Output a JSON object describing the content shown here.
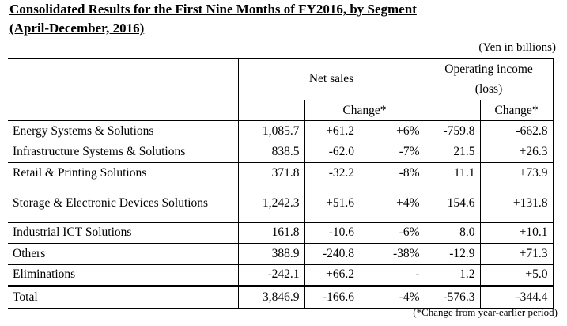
{
  "title_line1": "Consolidated Results for the First Nine Months of FY2016, by Segment",
  "title_line2": "(April-December, 2016)",
  "unit_note": "(Yen in billions)",
  "headers": {
    "net_sales": "Net sales",
    "operating_income": "Operating income (loss)",
    "change": "Change*",
    "change_oi": "Change*"
  },
  "rows": [
    {
      "segment": "Energy Systems & Solutions",
      "net_sales": "1,085.7",
      "change": "+61.2",
      "change_pct": "+6%",
      "op_income": "-759.8",
      "op_change": "-662.8"
    },
    {
      "segment": "Infrastructure Systems & Solutions",
      "net_sales": "838.5",
      "change": "-62.0",
      "change_pct": "-7%",
      "op_income": "21.5",
      "op_change": "+26.3"
    },
    {
      "segment": "Retail & Printing Solutions",
      "net_sales": "371.8",
      "change": "-32.2",
      "change_pct": "-8%",
      "op_income": "11.1",
      "op_change": "+73.9"
    },
    {
      "segment": "Storage & Electronic Devices Solutions",
      "net_sales": "1,242.3",
      "change": "+51.6",
      "change_pct": "+4%",
      "op_income": "154.6",
      "op_change": "+131.8"
    },
    {
      "segment": "Industrial ICT Solutions",
      "net_sales": "161.8",
      "change": "-10.6",
      "change_pct": "-6%",
      "op_income": "8.0",
      "op_change": "+10.1"
    },
    {
      "segment": "Others",
      "net_sales": "388.9",
      "change": "-240.8",
      "change_pct": "-38%",
      "op_income": "-12.9",
      "op_change": "+71.3"
    },
    {
      "segment": "Eliminations",
      "net_sales": "-242.1",
      "change": "+66.2",
      "change_pct": "-",
      "op_income": "1.2",
      "op_change": "+5.0"
    },
    {
      "segment": "Total",
      "net_sales": "3,846.9",
      "change": "-166.6",
      "change_pct": "-4%",
      "op_income": "-576.3",
      "op_change": "-344.4"
    }
  ],
  "footnote": "(*Change from year-earlier period)"
}
